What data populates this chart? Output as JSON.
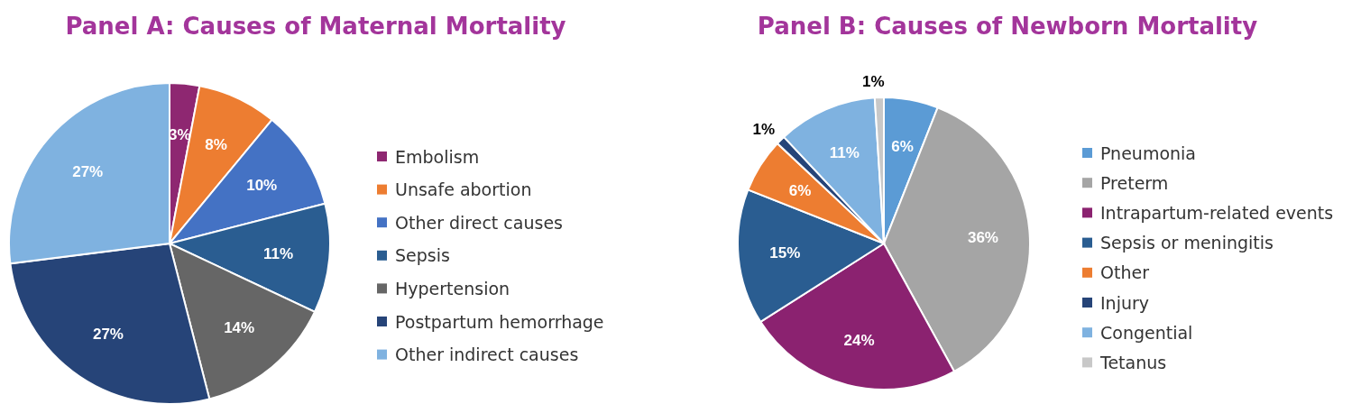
{
  "chart_data": [
    {
      "type": "pie",
      "title": "Panel A: Causes of Maternal Mortality",
      "categories": [
        "Embolism",
        "Unsafe abortion",
        "Other direct causes",
        "Sepsis",
        "Hypertension",
        "Postpartum hemorrhage",
        "Other indirect causes"
      ],
      "values": [
        3,
        8,
        10,
        11,
        14,
        27,
        27
      ],
      "colors": [
        "#8e2771",
        "#ed7d31",
        "#4472c4",
        "#2a5d91",
        "#666666",
        "#264478",
        "#7fb2e0"
      ],
      "value_labels": [
        "3%",
        "8%",
        "10%",
        "11%",
        "14%",
        "27%",
        "27%"
      ],
      "legend": "right"
    },
    {
      "type": "pie",
      "title": "Panel B: Causes of Newborn Mortality",
      "categories": [
        "Pneumonia",
        "Preterm",
        "Intrapartum-related events",
        "Sepsis or meningitis",
        "Other",
        "Injury",
        "Congential",
        "Tetanus"
      ],
      "values": [
        6,
        36,
        24,
        15,
        6,
        1,
        11,
        1
      ],
      "colors": [
        "#5b9bd5",
        "#a5a5a5",
        "#8b2270",
        "#2a5d91",
        "#ed7d31",
        "#264478",
        "#7fb2e0",
        "#c8c8c8"
      ],
      "value_labels": [
        "6%",
        "36%",
        "24%",
        "15%",
        "6%",
        "1%",
        "11%",
        "1%"
      ],
      "legend": "right"
    }
  ]
}
